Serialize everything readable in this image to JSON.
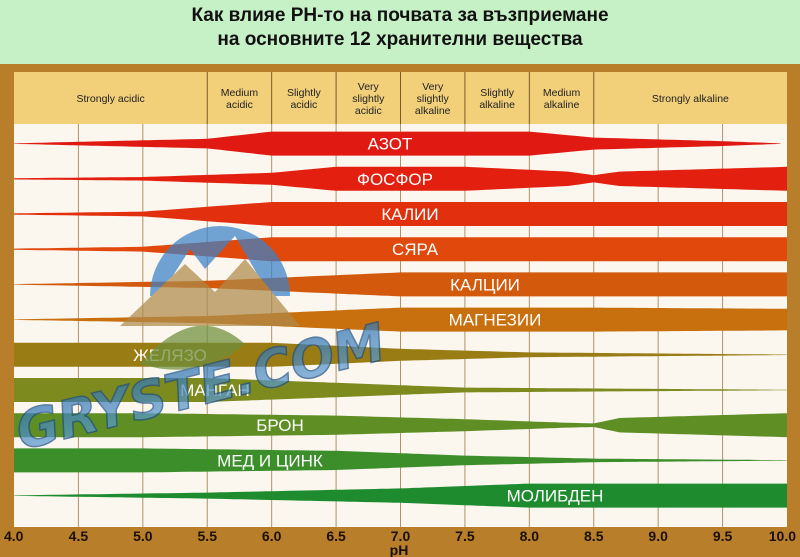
{
  "title_line1": "Как влияе РН-то на почвата за възприемане",
  "title_line2": "на основните 12 хранителни вещества",
  "watermark": {
    "text": "GRYSTE.COM",
    "logo": "mountain-leaf-logo"
  },
  "colors": {
    "background": "#c6f0c6",
    "header_band": "#f2cf79",
    "chart_bg": "#fbf7ee",
    "frame": "#b87e2a"
  },
  "chart_data": {
    "type": "band",
    "xlabel": "pH",
    "xlim": [
      4.0,
      10.0
    ],
    "xticks": [
      "4.0",
      "4.5",
      "5.0",
      "5.5",
      "6.0",
      "6.5",
      "7.0",
      "7.5",
      "8.0",
      "8.5",
      "9.0",
      "9.5",
      "10.0"
    ],
    "ranges": [
      {
        "label": "Strongly acidic",
        "from": 4.0,
        "to": 5.5
      },
      {
        "label": "Medium acidic",
        "from": 5.5,
        "to": 6.0
      },
      {
        "label": "Slightly acidic",
        "from": 6.0,
        "to": 6.5
      },
      {
        "label": "Very slightly acidic",
        "from": 6.5,
        "to": 7.0
      },
      {
        "label": "Very slightly alkaline",
        "from": 7.0,
        "to": 7.5
      },
      {
        "label": "Slightly alkaline",
        "from": 7.5,
        "to": 8.0
      },
      {
        "label": "Medium alkaline",
        "from": 8.0,
        "to": 8.5
      },
      {
        "label": "Strongly alkaline",
        "from": 8.5,
        "to": 10.0
      }
    ],
    "series": [
      {
        "name": "АЗОТ",
        "color": "#e01a12",
        "profile": [
          [
            4.0,
            0.02
          ],
          [
            5.5,
            0.4
          ],
          [
            6.0,
            1
          ],
          [
            8.0,
            1
          ],
          [
            8.5,
            0.5
          ],
          [
            9.5,
            0.2
          ],
          [
            9.95,
            0.02
          ]
        ]
      },
      {
        "name": "ФОСФОР",
        "color": "#e3200f",
        "profile": [
          [
            4.0,
            0.05
          ],
          [
            5.0,
            0.15
          ],
          [
            6.0,
            0.5
          ],
          [
            6.5,
            1
          ],
          [
            7.5,
            1
          ],
          [
            8.3,
            0.6
          ],
          [
            8.5,
            0.3
          ],
          [
            8.7,
            0.6
          ],
          [
            10.0,
            1
          ]
        ]
      },
      {
        "name": "КАЛИИ",
        "color": "#e2300e",
        "profile": [
          [
            4.0,
            0.05
          ],
          [
            5.0,
            0.2
          ],
          [
            6.0,
            1
          ],
          [
            10.0,
            1
          ]
        ]
      },
      {
        "name": "СЯРА",
        "color": "#e0480c",
        "profile": [
          [
            4.0,
            0.05
          ],
          [
            5.0,
            0.2
          ],
          [
            6.0,
            1
          ],
          [
            10.0,
            1
          ]
        ]
      },
      {
        "name": "КАЛЦИИ",
        "color": "#d35a0c",
        "profile": [
          [
            4.0,
            0.02
          ],
          [
            5.5,
            0.3
          ],
          [
            7.0,
            1
          ],
          [
            8.5,
            1
          ],
          [
            10.0,
            1
          ]
        ]
      },
      {
        "name": "МАГНЕЗИИ",
        "color": "#c8700e",
        "profile": [
          [
            4.0,
            0.02
          ],
          [
            5.5,
            0.3
          ],
          [
            7.0,
            1
          ],
          [
            8.5,
            1
          ],
          [
            10.0,
            0.9
          ]
        ]
      },
      {
        "name": "ЖЕЛЯЗО",
        "color": "#9a7c14",
        "profile": [
          [
            4.0,
            1
          ],
          [
            6.0,
            1
          ],
          [
            7.0,
            0.5
          ],
          [
            8.0,
            0.2
          ],
          [
            10.0,
            0.02
          ]
        ]
      },
      {
        "name": "МАНГАН",
        "color": "#7c8a1e",
        "profile": [
          [
            4.0,
            1
          ],
          [
            5.5,
            1
          ],
          [
            6.5,
            0.6
          ],
          [
            7.5,
            0.2
          ],
          [
            10.0,
            0.02
          ]
        ]
      },
      {
        "name": "БРОН",
        "color": "#5e8e24",
        "profile": [
          [
            4.0,
            1
          ],
          [
            5.0,
            1
          ],
          [
            6.5,
            0.8
          ],
          [
            7.5,
            0.5
          ],
          [
            8.3,
            0.2
          ],
          [
            8.5,
            0.15
          ],
          [
            8.7,
            0.6
          ],
          [
            10.0,
            1
          ]
        ]
      },
      {
        "name": "МЕД И ЦИНК",
        "color": "#3c8e2a",
        "profile": [
          [
            4.0,
            1
          ],
          [
            5.0,
            1
          ],
          [
            6.5,
            0.8
          ],
          [
            7.5,
            0.4
          ],
          [
            8.5,
            0.15
          ],
          [
            10.0,
            0.02
          ]
        ]
      },
      {
        "name": "МОЛИБДЕН",
        "color": "#1e8c2e",
        "profile": [
          [
            4.0,
            0.02
          ],
          [
            5.5,
            0.25
          ],
          [
            7.0,
            0.6
          ],
          [
            8.0,
            1
          ],
          [
            10.0,
            1
          ]
        ]
      }
    ]
  }
}
